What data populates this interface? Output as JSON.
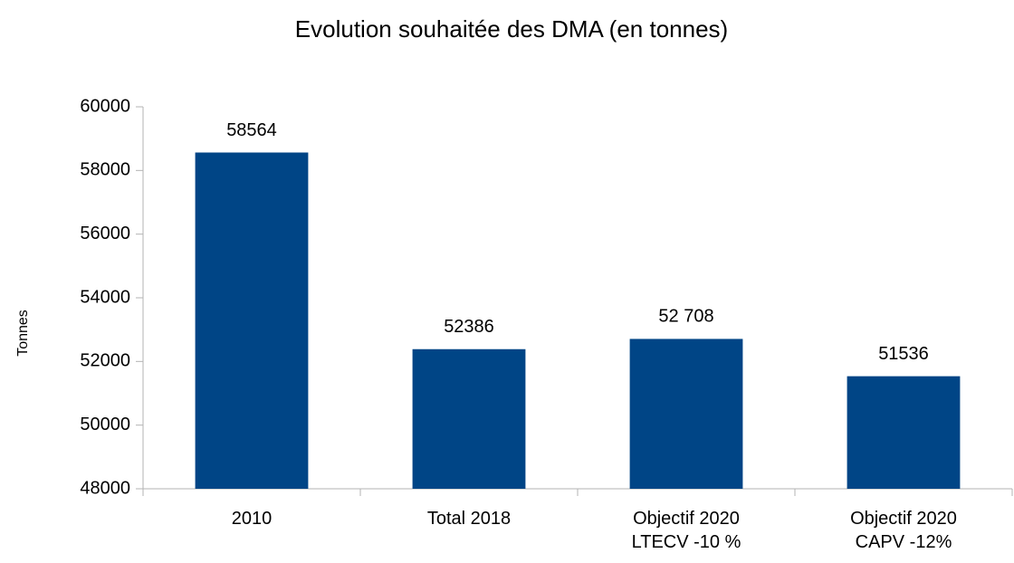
{
  "chart_data": {
    "type": "bar",
    "title": "Evolution souhaitée des DMA (en tonnes)",
    "y_label": "Tonnes",
    "categories": [
      "2010",
      "Total 2018",
      "Objectif 2020\nLTECV -10 %",
      "Objectif 2020\nCAPV -12%"
    ],
    "values": [
      58564,
      52386,
      52708,
      51536
    ],
    "value_labels": [
      "58564",
      "52386",
      "52 708",
      "51536"
    ],
    "color": "#004586",
    "ylim": [
      48000,
      60000
    ],
    "yticks": [
      48000,
      50000,
      52000,
      54000,
      56000,
      58000,
      60000
    ],
    "grid": false
  }
}
